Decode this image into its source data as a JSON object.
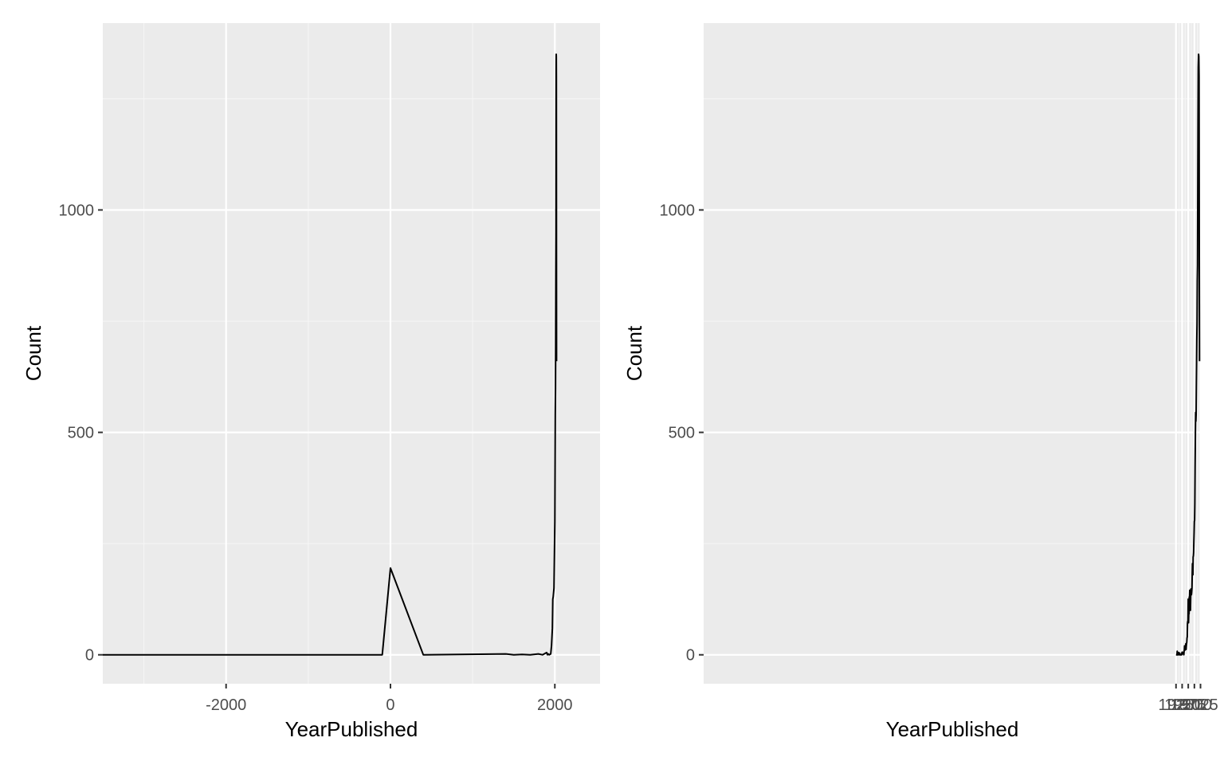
{
  "theme": {
    "panel_background": "#ebebeb",
    "grid_major": "#ffffff",
    "grid_minor": "#f5f5f5",
    "tick_color": "#333333",
    "tick_label_color": "#4d4d4d",
    "line_color": "#000000"
  },
  "chart_data": [
    {
      "type": "line",
      "xlabel": "YearPublished",
      "ylabel": "Count",
      "xlim": [
        -3500,
        2550
      ],
      "ylim": [
        -65,
        1420
      ],
      "x_ticks": [
        -2000,
        0,
        2000
      ],
      "x_tick_labels": [
        "-2000",
        "0",
        "2000"
      ],
      "x_minor_ticks": [
        -3000,
        -1000,
        1000
      ],
      "y_ticks": [
        0,
        500,
        1000
      ],
      "y_tick_labels": [
        "0",
        "500",
        "1000"
      ],
      "y_minor_ticks": [
        250,
        750,
        1250
      ],
      "grid": true,
      "series": [
        {
          "x": [
            -3500,
            -100,
            0,
            400,
            1400,
            1500,
            1600,
            1700,
            1800,
            1850,
            1900,
            1910,
            1920,
            1930,
            1950,
            1960,
            1970,
            1975,
            1980,
            1990,
            2000,
            2005,
            2008,
            2010,
            2012,
            2014,
            2015,
            2016,
            2017,
            2018,
            2019,
            2020,
            2021
          ],
          "y": [
            0,
            0,
            195,
            0,
            2,
            0,
            1,
            0,
            2,
            0,
            5,
            0,
            2,
            0,
            2,
            20,
            60,
            125,
            130,
            150,
            300,
            540,
            600,
            700,
            850,
            950,
            1200,
            1320,
            1350,
            1345,
            1300,
            900,
            660
          ]
        }
      ]
    },
    {
      "type": "line",
      "xlabel": "YearPublished",
      "ylabel": "Count",
      "xlim": [
        -4.5,
        2026.6
      ],
      "ylim": [
        -65,
        1420
      ],
      "x_ticks": [
        1925,
        1950,
        1975,
        2000,
        2025
      ],
      "x_tick_labels": [
        "1925",
        "1950",
        "1975",
        "2000",
        "2025"
      ],
      "x_minor_ticks": [
        1937.5,
        1962.5,
        1987.5,
        2012.5
      ],
      "y_ticks": [
        0,
        500,
        1000
      ],
      "y_tick_labels": [
        "0",
        "500",
        "1000"
      ],
      "y_minor_ticks": [
        250,
        750,
        1250
      ],
      "grid": true,
      "series": [
        {
          "x": [
            1925,
            1929,
            1930,
            1931,
            1932,
            1933,
            1934,
            1935,
            1936,
            1937,
            1938,
            1939,
            1940,
            1941,
            1942,
            1948,
            1949,
            1950,
            1951,
            1952,
            1955,
            1956,
            1957,
            1958,
            1959,
            1960,
            1961,
            1962,
            1963,
            1964,
            1965,
            1966,
            1967,
            1968,
            1969,
            1970,
            1971,
            1972,
            1973,
            1974,
            1975,
            1976,
            1977,
            1978,
            1979,
            1980,
            1981,
            1982,
            1983,
            1984,
            1985,
            1986,
            1987,
            1988,
            1989,
            1990,
            1991,
            1992,
            1993,
            1994,
            1995,
            1996,
            1997,
            1998,
            1999,
            2000,
            2001,
            2002,
            2003,
            2004,
            2005,
            2006,
            2007,
            2008,
            2009,
            2010,
            2011,
            2012,
            2013,
            2014,
            2015,
            2016,
            2017,
            2018,
            2019,
            2020,
            2021
          ],
          "y": [
            0,
            0,
            8,
            2,
            0,
            3,
            0,
            0,
            5,
            2,
            3,
            4,
            0,
            3,
            0,
            0,
            5,
            6,
            2,
            4,
            5,
            6,
            0,
            8,
            10,
            20,
            10,
            15,
            16,
            18,
            25,
            12,
            20,
            25,
            28,
            38,
            40,
            70,
            75,
            72,
            125,
            72,
            95,
            92,
            130,
            125,
            145,
            125,
            135,
            100,
            130,
            148,
            135,
            135,
            140,
            150,
            180,
            205,
            185,
            180,
            220,
            222,
            230,
            255,
            275,
            300,
            302,
            340,
            420,
            500,
            545,
            525,
            540,
            600,
            655,
            710,
            745,
            840,
            875,
            1040,
            1200,
            1320,
            1350,
            1345,
            1300,
            900,
            660
          ]
        }
      ]
    }
  ]
}
